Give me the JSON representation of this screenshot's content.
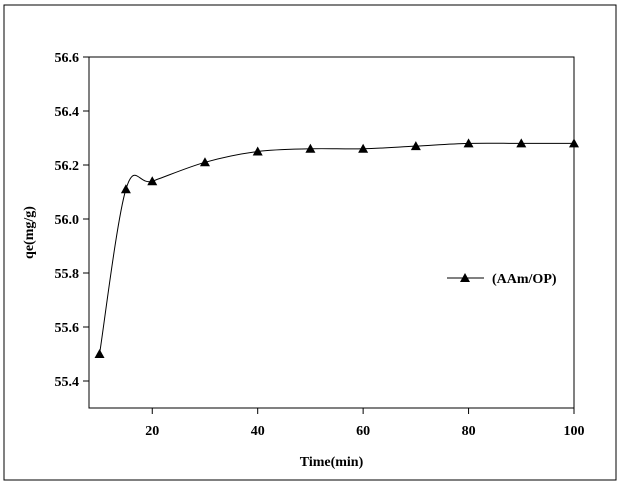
{
  "chart_data": {
    "type": "line",
    "title": "",
    "xlabel": "Time(min)",
    "ylabel": "qe(mg/g)",
    "xlim": [
      8,
      100
    ],
    "ylim": [
      55.3,
      56.6
    ],
    "xticks": [
      20,
      40,
      60,
      80,
      100
    ],
    "xtick_labels": [
      "20",
      "40",
      "60",
      "80",
      "100"
    ],
    "yticks": [
      55.4,
      55.6,
      55.8,
      56.0,
      56.2,
      56.4,
      56.6
    ],
    "ytick_labels": [
      "55.4",
      "55.6",
      "55.8",
      "56.0",
      "56.2",
      "56.4",
      "56.6"
    ],
    "grid": false,
    "legend_position": "right",
    "series": [
      {
        "name": "(AAm/OP)",
        "marker": "triangle",
        "color": "#000000",
        "x": [
          10,
          15,
          20,
          30,
          40,
          50,
          60,
          70,
          80,
          90,
          100
        ],
        "y": [
          55.5,
          56.11,
          56.14,
          56.21,
          56.25,
          56.26,
          56.26,
          56.27,
          56.28,
          56.28,
          56.28
        ]
      }
    ]
  }
}
